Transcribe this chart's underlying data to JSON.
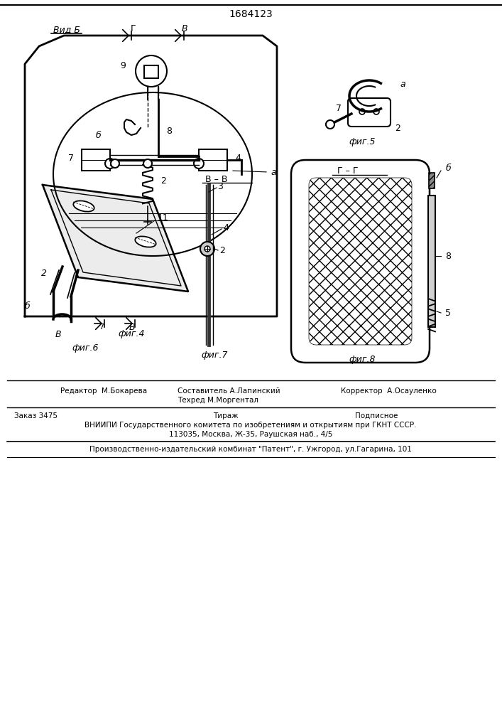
{
  "patent_number": "1684123",
  "bg": "#ffffff",
  "lc": "#000000",
  "fig_width": 7.07,
  "fig_height": 10.0,
  "dpi": 100,
  "footer_editor": "Редактор  М.Бокарева",
  "footer_comp": "Составитель А.Лапинский",
  "footer_corr": "Корректор  А.Осауленко",
  "footer_tech": "Техред М.Моргентал",
  "footer_order": "Заказ 3475",
  "footer_tirazh": "Тираж",
  "footer_podp": "Подписное",
  "footer_vniipи": "ВНИИПИ Государственного комитета по изобретениям и открытиям при ГКНТ СССР.",
  "footer_addr": "113035, Москва, Ж-35, Раушская наб., 4/5",
  "footer_pat": "Производственно-издательский комбинат \"Патент\", г. Ужгород, ул.Гагарина, 101"
}
